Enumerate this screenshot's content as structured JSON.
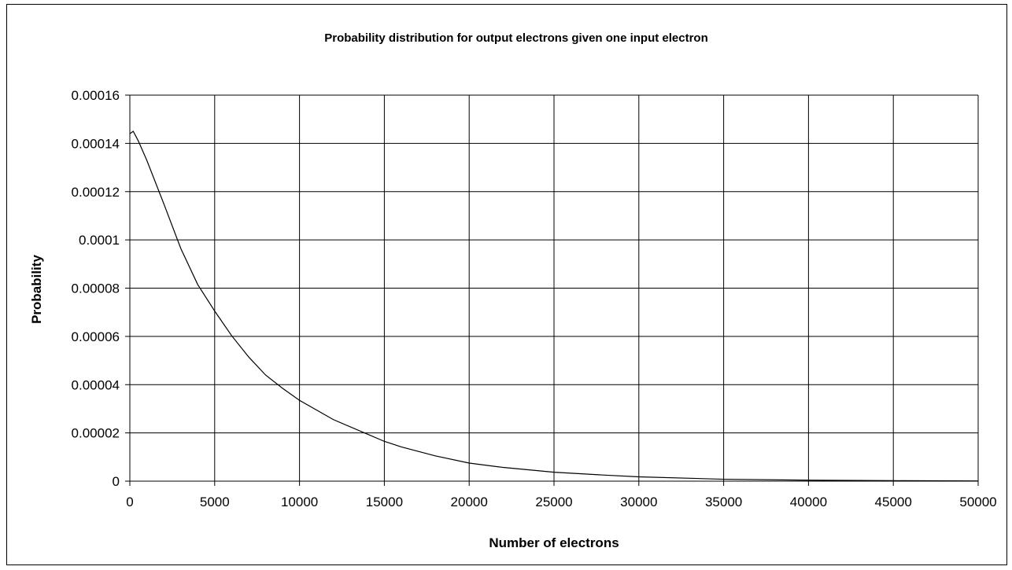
{
  "chart_data": {
    "type": "line",
    "title": "Probability distribution for output electrons given one input electron",
    "xlabel": "Number of electrons",
    "ylabel": "Probability",
    "xlim": [
      0,
      50000
    ],
    "ylim": [
      0,
      0.00016
    ],
    "x_ticks": [
      "0",
      "5000",
      "10000",
      "15000",
      "20000",
      "25000",
      "30000",
      "35000",
      "40000",
      "45000",
      "50000"
    ],
    "y_ticks": [
      "0",
      "0.00002",
      "0.00004",
      "0.00006",
      "0.00008",
      "0.0001",
      "0.00012",
      "0.00014",
      "0.00016"
    ],
    "grid": true,
    "legend": "none",
    "line_color": "#000000",
    "series": [
      {
        "x": [
          0,
          200,
          500,
          1000,
          2000,
          3000,
          4000,
          5000,
          6000,
          7000,
          8000,
          9000,
          10000,
          12000,
          14000,
          15000,
          16000,
          18000,
          20000,
          22000,
          25000,
          28000,
          30000,
          35000,
          40000,
          45000,
          50000
        ],
        "values": [
          0.000144,
          0.000145,
          0.000141,
          0.000133,
          0.000115,
          9.65e-05,
          8.15e-05,
          7.05e-05,
          6.03e-05,
          5.15e-05,
          4.4e-05,
          3.85e-05,
          3.35e-05,
          2.55e-05,
          1.95e-05,
          1.65e-05,
          1.42e-05,
          1.05e-05,
          7.5e-06,
          5.7e-06,
          3.7e-06,
          2.5e-06,
          1.8e-06,
          8e-07,
          4e-07,
          2e-07,
          1e-07
        ]
      }
    ]
  }
}
